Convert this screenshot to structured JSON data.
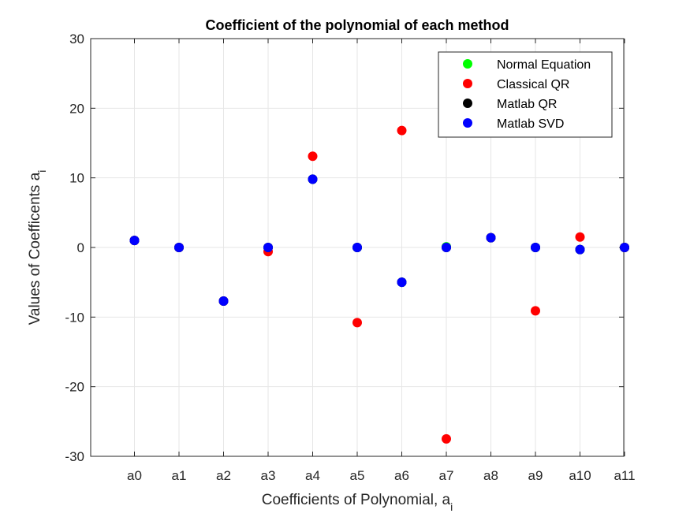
{
  "chart_data": {
    "type": "scatter",
    "title": "Coefficient of the polynomial of each method",
    "xlabel_main": "Coefficients of Polynomial, a",
    "xlabel_sub": "i",
    "ylabel_main": "Values of Coefficents a",
    "ylabel_sub": "i",
    "categories": [
      "a0",
      "a1",
      "a2",
      "a3",
      "a4",
      "a5",
      "a6",
      "a7",
      "a8",
      "a9",
      "a10",
      "a11"
    ],
    "ylim": [
      -30,
      30
    ],
    "yticks": [
      -30,
      -20,
      -10,
      0,
      10,
      20,
      30
    ],
    "grid": true,
    "legend_position": "top-right",
    "series": [
      {
        "name": "Normal Equation",
        "color": "#00ff00",
        "values": [
          1.0,
          0.0,
          -7.7,
          0.0,
          9.8,
          0.0,
          -5.0,
          0.1,
          1.4,
          0.0,
          -0.3,
          0.0
        ]
      },
      {
        "name": "Classical QR",
        "color": "#ff0000",
        "values": [
          1.0,
          0.0,
          -7.7,
          -0.6,
          13.1,
          -10.8,
          16.8,
          -27.5,
          1.4,
          -9.1,
          1.5,
          0.0
        ]
      },
      {
        "name": "Matlab QR",
        "color": "#000000",
        "values": [
          1.0,
          0.0,
          -7.7,
          0.0,
          9.8,
          0.0,
          -5.0,
          0.0,
          1.4,
          0.0,
          -0.3,
          0.0
        ]
      },
      {
        "name": "Matlab SVD",
        "color": "#0000ff",
        "values": [
          1.0,
          0.0,
          -7.7,
          0.0,
          9.8,
          0.0,
          -5.0,
          0.0,
          1.4,
          0.0,
          -0.3,
          0.0
        ]
      }
    ]
  }
}
